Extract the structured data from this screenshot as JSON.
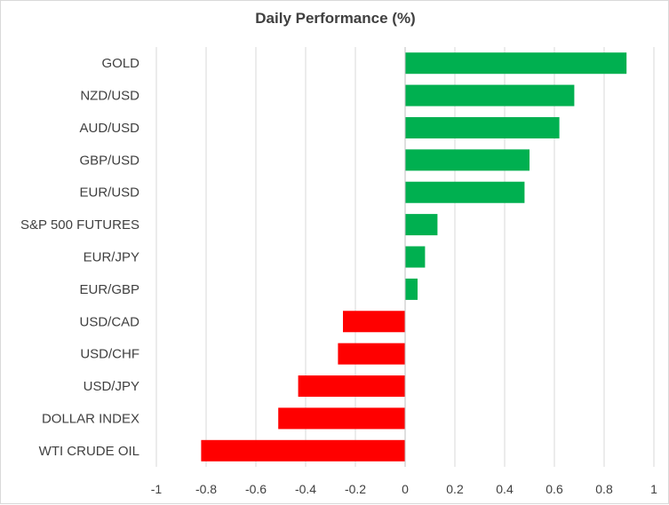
{
  "chart_data": {
    "type": "bar",
    "orientation": "horizontal",
    "title": "Daily Performance  (%)",
    "xlabel": "",
    "ylabel": "",
    "xlim": [
      -1,
      1
    ],
    "x_ticks": [
      -1,
      -0.8,
      -0.6,
      -0.4,
      -0.2,
      0,
      0.2,
      0.4,
      0.6,
      0.8,
      1
    ],
    "x_tick_labels": [
      "-1",
      "-0.8",
      "-0.6",
      "-0.4",
      "-0.2",
      "0",
      "0.2",
      "0.4",
      "0.6",
      "0.8",
      "1"
    ],
    "grid": "vertical",
    "legend": "none",
    "categories": [
      "GOLD",
      "NZD/USD",
      "AUD/USD",
      "GBP/USD",
      "EUR/USD",
      "S&P 500 FUTURES",
      "EUR/JPY",
      "EUR/GBP",
      "USD/CAD",
      "USD/CHF",
      "USD/JPY",
      "DOLLAR INDEX",
      "WTI CRUDE OIL"
    ],
    "values": [
      0.89,
      0.68,
      0.62,
      0.5,
      0.48,
      0.13,
      0.08,
      0.05,
      -0.25,
      -0.27,
      -0.43,
      -0.51,
      -0.82
    ],
    "colors": {
      "positive": "#00b050",
      "negative": "#ff0000",
      "grid": "#d9d9d9",
      "axis": "#bfbfbf"
    }
  }
}
